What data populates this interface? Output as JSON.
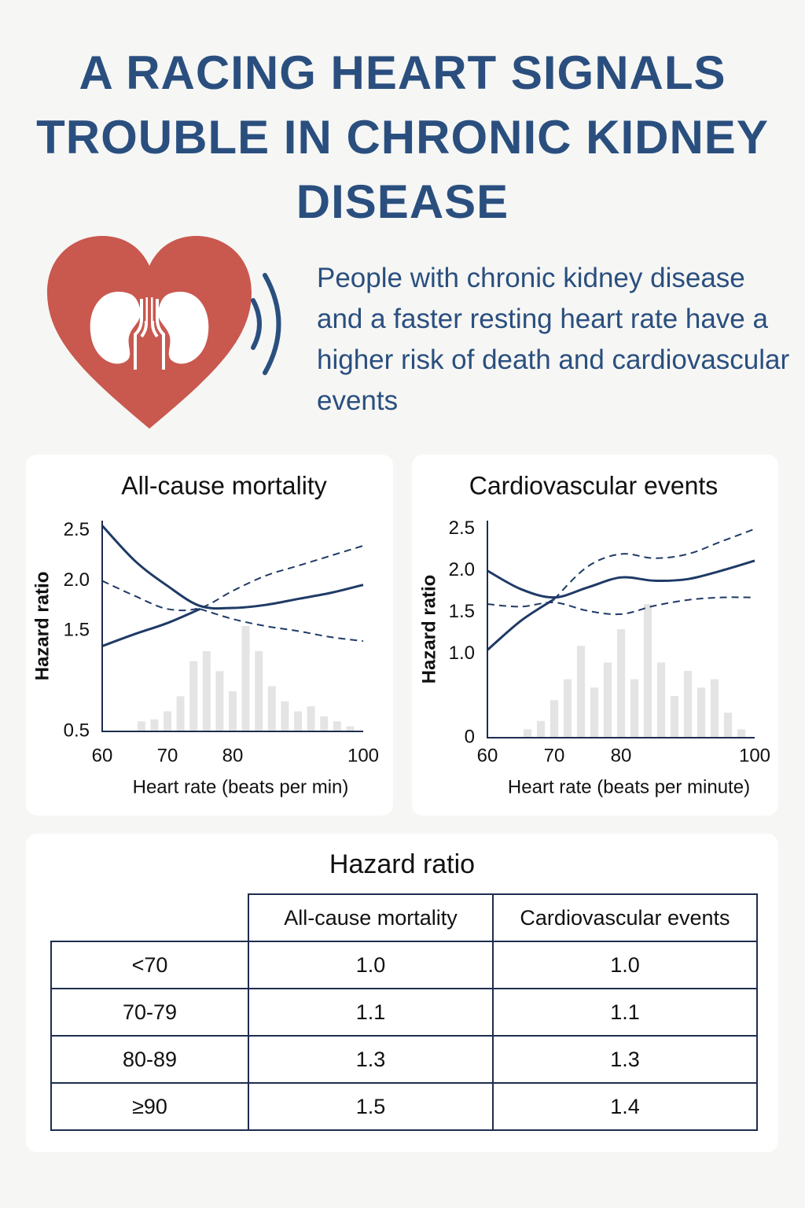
{
  "title": "A RACING HEART SIGNALS TROUBLE IN CHRONIC KIDNEY DISEASE",
  "subtitle": "People with chronic kidney disease and a faster resting heart rate have a higher risk of death and cardiovascular events",
  "chart_data": [
    {
      "type": "line",
      "title": "All-cause mortality",
      "xlabel": "Heart rate (beats per min)",
      "ylabel": "Hazard ratio",
      "x": [
        60,
        65,
        70,
        75,
        80,
        85,
        90,
        95,
        100
      ],
      "series": [
        {
          "color": "#1f3a66",
          "dashed": false,
          "values": [
            2.55,
            2.2,
            1.95,
            1.75,
            1.73,
            1.76,
            1.82,
            1.88,
            1.96
          ]
        },
        {
          "color": "#1f3a66",
          "dashed": false,
          "values": [
            1.35,
            1.47,
            1.58,
            1.72,
            null,
            null,
            null,
            null,
            null
          ]
        },
        {
          "color": "#1f3a66",
          "dashed": true,
          "values": [
            2.0,
            1.85,
            1.72,
            1.73,
            1.9,
            2.05,
            2.15,
            2.25,
            2.35
          ]
        },
        {
          "color": "#1f3a66",
          "dashed": true,
          "values": [
            null,
            null,
            null,
            1.72,
            1.62,
            1.55,
            1.5,
            1.44,
            1.4
          ]
        }
      ],
      "histogram": {
        "color": "#e4e4e4",
        "x": [
          66,
          68,
          70,
          72,
          74,
          76,
          78,
          80,
          82,
          84,
          86,
          88,
          90,
          92,
          94,
          96,
          98
        ],
        "values": [
          0.6,
          0.62,
          0.7,
          0.85,
          1.2,
          1.3,
          1.1,
          0.9,
          1.55,
          1.3,
          0.95,
          0.8,
          0.7,
          0.75,
          0.65,
          0.6,
          0.55
        ]
      },
      "xlim": [
        60,
        100
      ],
      "xticks": [
        60,
        70,
        80,
        100
      ],
      "ylim": [
        0.5,
        2.6
      ],
      "yticks": [
        {
          "value": 2.5,
          "label": "2.5"
        },
        {
          "value": 2,
          "label": "2.0"
        },
        {
          "value": 1.5,
          "label": "1.5"
        },
        {
          "value": 0.5,
          "label": "0.5"
        }
      ]
    },
    {
      "type": "line",
      "title": "Cardiovascular events",
      "xlabel": "Heart rate (beats per minute)",
      "ylabel": "Hazard ratio",
      "x": [
        60,
        65,
        70,
        75,
        80,
        85,
        90,
        95,
        100
      ],
      "series": [
        {
          "color": "#1f3a66",
          "dashed": false,
          "values": [
            2.0,
            1.78,
            1.68,
            1.8,
            1.92,
            1.88,
            1.9,
            2.0,
            2.12
          ]
        },
        {
          "color": "#1f3a66",
          "dashed": false,
          "values": [
            1.05,
            1.4,
            1.66,
            null,
            null,
            null,
            null,
            null,
            null
          ]
        },
        {
          "color": "#1f3a66",
          "dashed": true,
          "values": [
            null,
            null,
            1.66,
            2.05,
            2.2,
            2.15,
            2.2,
            2.35,
            2.5
          ]
        },
        {
          "color": "#1f3a66",
          "dashed": true,
          "values": [
            1.6,
            1.57,
            1.62,
            1.52,
            1.48,
            1.58,
            1.65,
            1.68,
            1.68
          ]
        }
      ],
      "histogram": {
        "color": "#e4e4e4",
        "x": [
          66,
          68,
          70,
          72,
          74,
          76,
          78,
          80,
          82,
          84,
          86,
          88,
          90,
          92,
          94,
          96,
          98
        ],
        "values": [
          0.1,
          0.2,
          0.45,
          0.7,
          1.1,
          0.6,
          0.9,
          1.3,
          0.7,
          1.6,
          0.9,
          0.5,
          0.8,
          0.6,
          0.7,
          0.3,
          0.1
        ]
      },
      "xlim": [
        60,
        100
      ],
      "xticks": [
        60,
        70,
        80,
        100
      ],
      "ylim": [
        0,
        2.6
      ],
      "yticks": [
        {
          "value": 2.5,
          "label": "2.5"
        },
        {
          "value": 2,
          "label": "2.0"
        },
        {
          "value": 1.5,
          "label": "1.5"
        },
        {
          "value": 1,
          "label": "1.0"
        },
        0
      ]
    }
  ],
  "table": {
    "title": "Hazard ratio",
    "columns": [
      "All-cause mortality",
      "Cardiovascular events"
    ],
    "rows": [
      [
        "<70",
        "1.0",
        "1.0"
      ],
      [
        "70-79",
        "1.1",
        "1.1"
      ],
      [
        "80-89",
        "1.3",
        "1.3"
      ],
      [
        "≥90",
        "1.5",
        "1.4"
      ]
    ]
  }
}
